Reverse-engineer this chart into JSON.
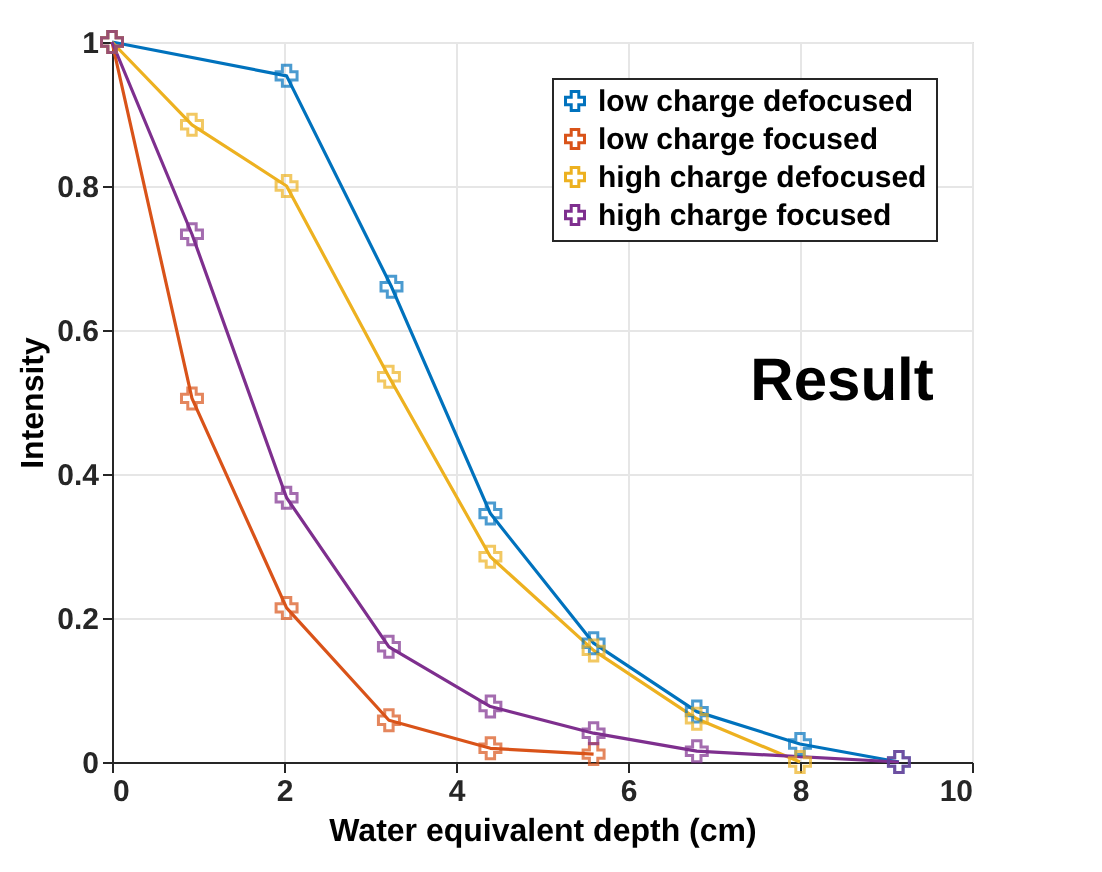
{
  "chart_data": {
    "type": "line",
    "xlabel": "Water equivalent depth (cm)",
    "ylabel": "Intensity",
    "xlim": [
      0,
      10
    ],
    "ylim": [
      0,
      1
    ],
    "xticks": [
      0,
      2,
      4,
      6,
      8,
      10
    ],
    "yticks": [
      0,
      0.2,
      0.4,
      0.6,
      0.8,
      1
    ],
    "grid": true,
    "legend": "top right",
    "marker": "cross",
    "line_style": "solid",
    "annotations": [
      "Result"
    ],
    "series": [
      {
        "name": "low charge defocused",
        "color": "#0072bd",
        "x": [
          0,
          2.03,
          3.25,
          4.4,
          5.6,
          6.8,
          8.0,
          9.15
        ],
        "values": [
          1,
          0.953,
          0.66,
          0.345,
          0.165,
          0.07,
          0.025,
          0
        ]
      },
      {
        "name": "low charge focused",
        "color": "#d95319",
        "x": [
          0,
          0.93,
          2.03,
          3.22,
          4.4,
          5.6
        ],
        "values": [
          1,
          0.505,
          0.214,
          0.058,
          0.019,
          0.011
        ]
      },
      {
        "name": "high charge defocused",
        "color": "#edb120",
        "x": [
          0,
          0.93,
          2.03,
          3.22,
          4.4,
          5.6,
          6.8,
          8.0
        ],
        "values": [
          1,
          0.885,
          0.8,
          0.535,
          0.285,
          0.155,
          0.06,
          0
        ]
      },
      {
        "name": "high charge focused",
        "color": "#7e2f8e",
        "x": [
          0,
          0.93,
          2.03,
          3.22,
          4.4,
          5.6,
          6.8,
          9.15
        ],
        "values": [
          1,
          0.733,
          0.367,
          0.16,
          0.077,
          0.04,
          0.015,
          0
        ]
      }
    ]
  }
}
